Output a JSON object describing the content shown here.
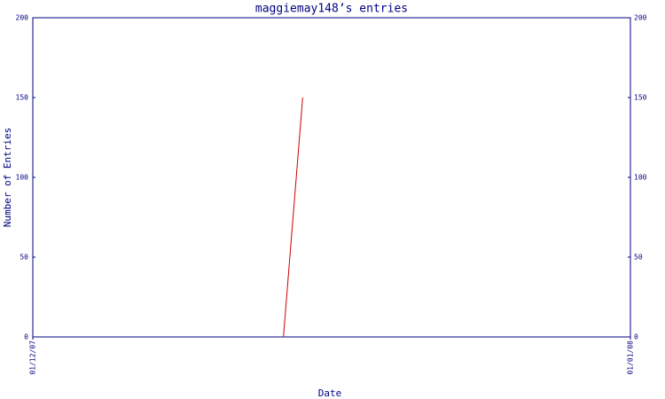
{
  "chart_data": {
    "type": "line",
    "title": "maggiemay148’s entries",
    "x_label": "Date",
    "y_label": "Number of Entries",
    "x": [
      "14/12/07",
      "15/12/07"
    ],
    "series": [
      {
        "name": "entries",
        "color": "#cc0000",
        "values": [
          0,
          150
        ]
      }
    ],
    "xlim": [
      "01/12/07",
      "01/01/08"
    ],
    "xticks": [
      "01/12/07",
      "01/01/08"
    ],
    "ylim": [
      0,
      200
    ],
    "yticks": [
      0,
      50,
      100,
      150,
      200
    ],
    "axis_color": "#000080"
  }
}
